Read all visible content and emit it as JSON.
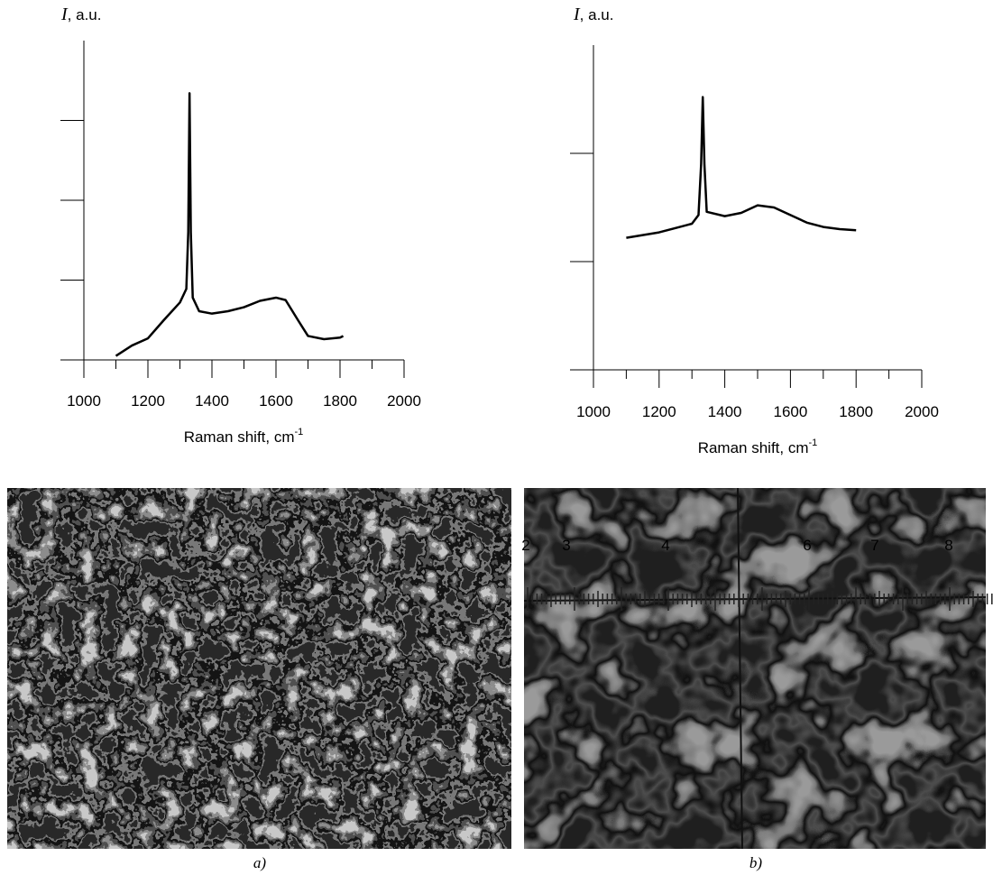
{
  "chart_data": [
    {
      "type": "line",
      "ylabel_symbol": "I",
      "ylabel_unit": ", a.u.",
      "xlabel": "Raman shift, cm",
      "xlabel_sup": "-1",
      "x": [
        1100,
        1150,
        1200,
        1250,
        1300,
        1320,
        1326,
        1330,
        1334,
        1340,
        1360,
        1400,
        1450,
        1500,
        1550,
        1600,
        1630,
        1670,
        1700,
        1750,
        1800,
        1810
      ],
      "values": [
        0.05,
        0.18,
        0.27,
        0.5,
        0.72,
        0.89,
        1.6,
        3.34,
        1.6,
        0.78,
        0.61,
        0.58,
        0.61,
        0.66,
        0.74,
        0.78,
        0.75,
        0.49,
        0.3,
        0.26,
        0.28,
        0.3
      ],
      "color": "#000000",
      "xlim": [
        1000,
        2000
      ],
      "xticks": [
        1000,
        1200,
        1400,
        1600,
        1800,
        2000
      ],
      "xminor_ticks": [
        1100,
        1300,
        1500,
        1700,
        1900
      ],
      "ylim": [
        0,
        4
      ],
      "yticks": [
        0,
        1,
        2,
        3
      ]
    },
    {
      "type": "line",
      "ylabel_symbol": "I",
      "ylabel_unit": ", a.u.",
      "xlabel": "Raman shift, cm",
      "xlabel_sup": "-1",
      "x": [
        1100,
        1200,
        1300,
        1320,
        1328,
        1333,
        1338,
        1345,
        1400,
        1450,
        1500,
        1550,
        1600,
        1650,
        1700,
        1750,
        1800
      ],
      "values": [
        1.22,
        1.27,
        1.35,
        1.43,
        1.9,
        2.52,
        1.9,
        1.46,
        1.42,
        1.45,
        1.52,
        1.5,
        1.43,
        1.36,
        1.32,
        1.3,
        1.29
      ],
      "color": "#000000",
      "xlim": [
        1000,
        2000
      ],
      "xticks": [
        1000,
        1200,
        1400,
        1600,
        1800,
        2000
      ],
      "xminor_ticks": [
        1100,
        1300,
        1500,
        1700,
        1900
      ],
      "ylim": [
        0,
        3
      ],
      "yticks": [
        0,
        1,
        2
      ]
    }
  ],
  "figure": {
    "captions": [
      "a)",
      "b)"
    ],
    "scale_digits": [
      "2",
      "3",
      "4",
      "6",
      "7",
      "8"
    ]
  }
}
